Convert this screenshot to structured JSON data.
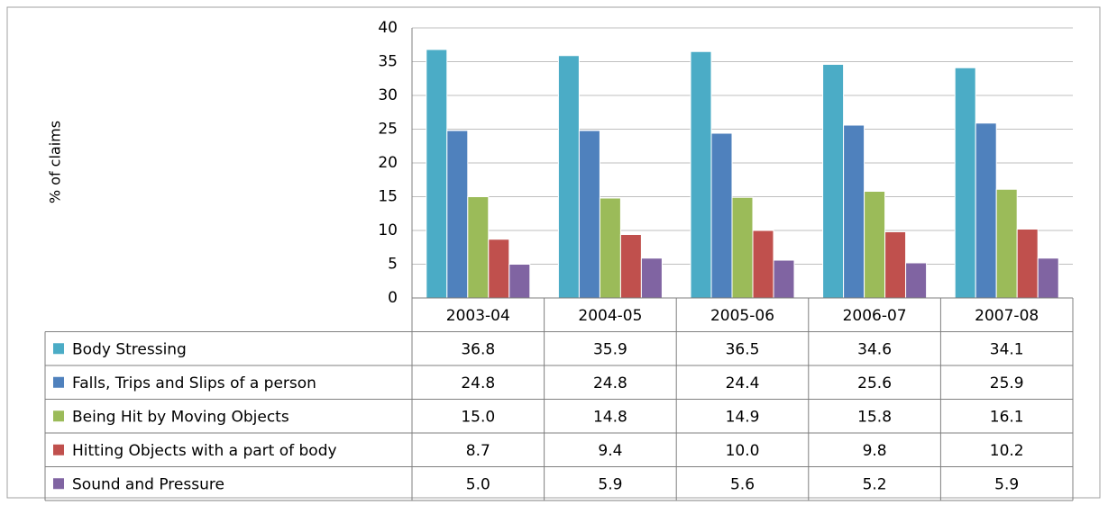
{
  "chart_data": {
    "type": "bar",
    "y_label": "% of claims",
    "categories": [
      "2003-04",
      "2004-05",
      "2005-06",
      "2006-07",
      "2007-08"
    ],
    "series": [
      {
        "name": "Body Stressing",
        "color": "#4bacc6",
        "values": [
          36.8,
          35.9,
          36.5,
          34.6,
          34.1
        ],
        "value_labels": [
          "36.8",
          "35.9",
          "36.5",
          "34.6",
          "34.1"
        ]
      },
      {
        "name": "Falls, Trips and Slips of a person",
        "color": "#4f81bd",
        "values": [
          24.8,
          24.8,
          24.4,
          25.6,
          25.9
        ],
        "value_labels": [
          "24.8",
          "24.8",
          "24.4",
          "25.6",
          "25.9"
        ]
      },
      {
        "name": "Being Hit by Moving Objects",
        "color": "#9bbb59",
        "values": [
          15,
          14.8,
          14.9,
          15.8,
          16.1
        ],
        "value_labels": [
          "15.0",
          "14.8",
          "14.9",
          "15.8",
          "16.1"
        ]
      },
      {
        "name": "Hitting Objects with a part of body",
        "color": "#c0504d",
        "values": [
          8.7,
          9.4,
          10,
          9.8,
          10.2
        ],
        "value_labels": [
          "8.7",
          "9.4",
          "10.0",
          "9.8",
          "10.2"
        ]
      },
      {
        "name": "Sound and Pressure",
        "color": "#8064a2",
        "values": [
          5,
          5.9,
          5.6,
          5.2,
          5.9
        ],
        "value_labels": [
          "5.0",
          "5.9",
          "5.6",
          "5.2",
          "5.9"
        ]
      }
    ],
    "ylim": [
      0,
      40
    ],
    "yticks": [
      0,
      5,
      10,
      15,
      20,
      25,
      30,
      35,
      40
    ],
    "grid": true
  }
}
